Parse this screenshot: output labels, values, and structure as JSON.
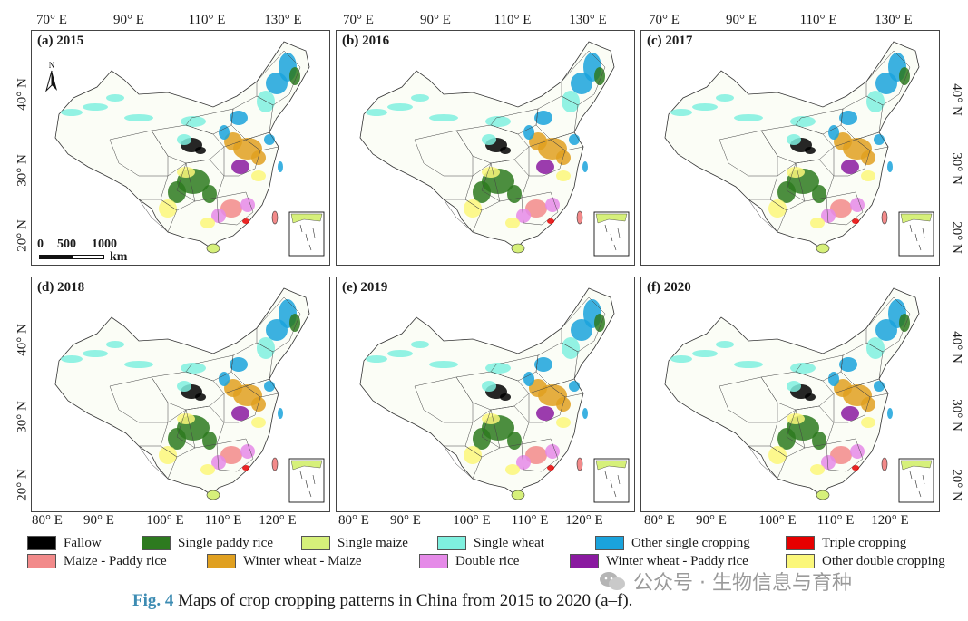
{
  "axes": {
    "lon_top": [
      "70° E",
      "90° E",
      "110° E",
      "130° E"
    ],
    "lon_bottom": [
      "80° E",
      "90° E",
      "100° E",
      "110° E",
      "120° E"
    ],
    "lat": [
      "40° N",
      "30° N",
      "20° N"
    ]
  },
  "panels": [
    {
      "label": "(a) 2015"
    },
    {
      "label": "(b) 2016"
    },
    {
      "label": "(c) 2017"
    },
    {
      "label": "(d) 2018"
    },
    {
      "label": "(e) 2019"
    },
    {
      "label": "(f) 2020"
    }
  ],
  "north_arrow": "N",
  "scale_bar": {
    "ticks": [
      "0",
      "500",
      "1000"
    ],
    "unit": "km"
  },
  "legend": [
    {
      "label": "Fallow",
      "color": "#000000"
    },
    {
      "label": "Single paddy rice",
      "color": "#2d7a1f"
    },
    {
      "label": "Single maize",
      "color": "#d6f07a"
    },
    {
      "label": "Single wheat",
      "color": "#7ff0df"
    },
    {
      "label": "Other single cropping",
      "color": "#1aa3dc"
    },
    {
      "label": "Triple cropping",
      "color": "#e60000"
    },
    {
      "label": "Maize - Paddy rice",
      "color": "#f28a8a"
    },
    {
      "label": "Winter wheat - Maize",
      "color": "#e0a020"
    },
    {
      "label": "Double rice",
      "color": "#e58ae8"
    },
    {
      "label": "Winter wheat - Paddy rice",
      "color": "#8a1aa0"
    },
    {
      "label": "Other double cropping",
      "color": "#fbf77a"
    }
  ],
  "caption": {
    "fig": "Fig. 4",
    "text": "Maps of crop cropping patterns in China from 2015 to 2020 (a–f)."
  },
  "watermark": "公众号 · 生物信息与育种"
}
